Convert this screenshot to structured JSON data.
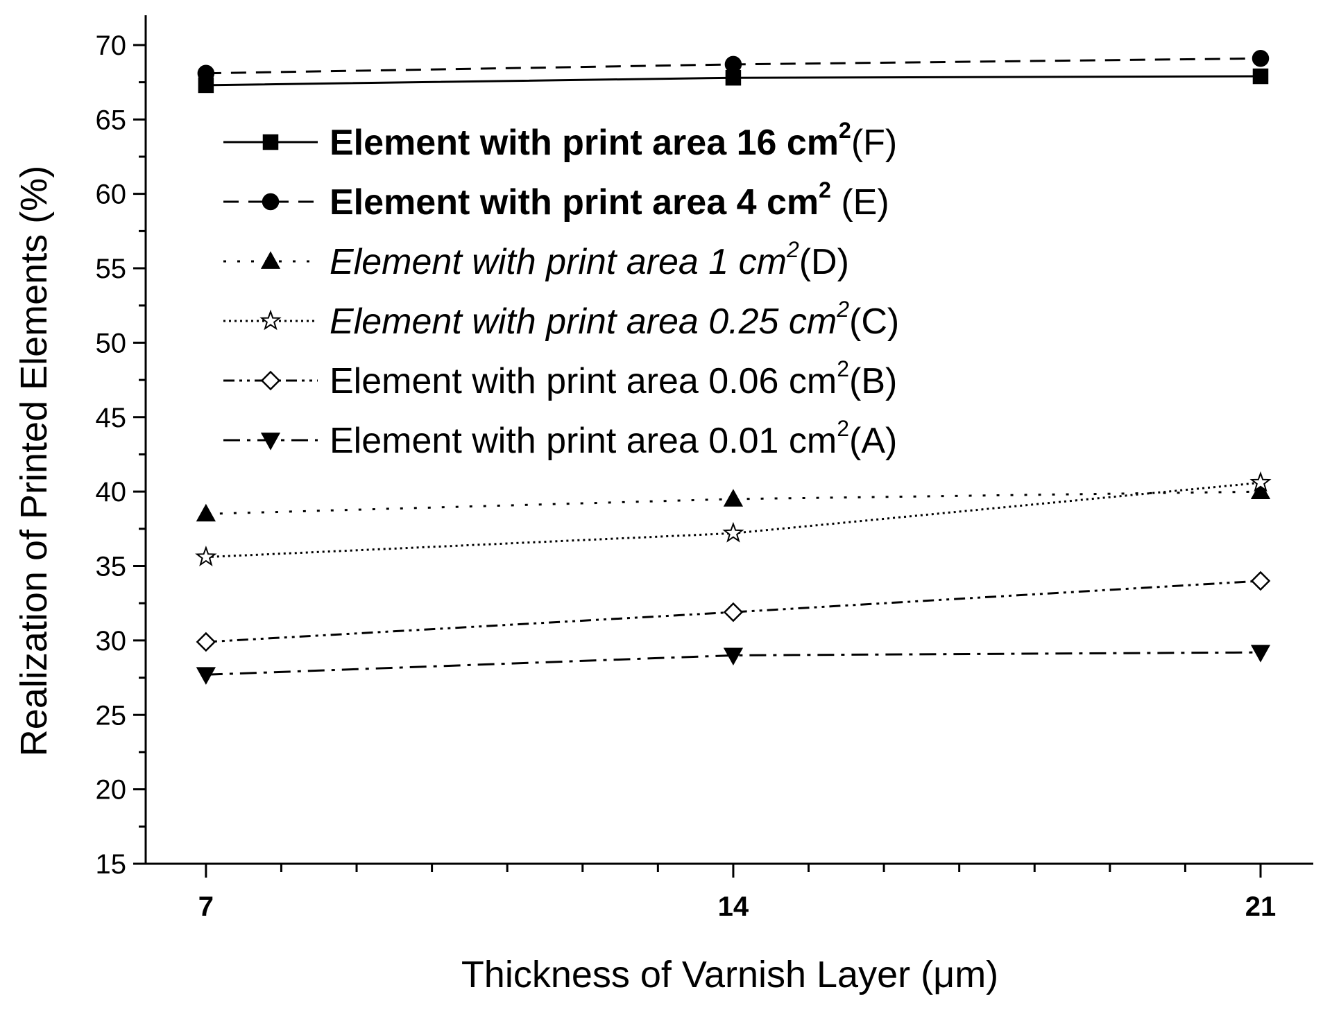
{
  "chart_data": {
    "type": "line",
    "xlabel": "Thickness of Varnish Layer (μm)",
    "ylabel": "Realization of Printed Elements (%)",
    "x": [
      7,
      14,
      21
    ],
    "x_tick_labels": [
      "7",
      "14",
      "21"
    ],
    "xlim": [
      6.2,
      21.7
    ],
    "ylim": [
      15,
      72
    ],
    "y_ticks": [
      15,
      20,
      25,
      30,
      35,
      40,
      45,
      50,
      55,
      60,
      65,
      70
    ],
    "y_tick_labels": [
      "15",
      "20",
      "25",
      "30",
      "35",
      "40",
      "45",
      "50",
      "55",
      "60",
      "65",
      "70"
    ],
    "grid": false,
    "legend_position": "upper-left",
    "series": [
      {
        "key": "F",
        "name_main": "Element with print area 16 cm",
        "name_sup": "2",
        "name_suffix": "(F)",
        "style": "bold",
        "dash": "solid",
        "marker": "square",
        "marker_fill": "filled",
        "values": [
          67.3,
          67.8,
          67.9
        ]
      },
      {
        "key": "E",
        "name_main": "Element with print area 4 cm",
        "name_sup": "2",
        "name_suffix": " (E)",
        "style": "bold",
        "dash": "dash",
        "marker": "circle",
        "marker_fill": "filled",
        "values": [
          68.1,
          68.7,
          69.1
        ]
      },
      {
        "key": "D",
        "name_main": "Element with print area 1 cm",
        "name_sup": "2",
        "name_suffix": "(D)",
        "style": "italic",
        "dash": "dot",
        "marker": "triangle-up",
        "marker_fill": "filled",
        "values": [
          38.5,
          39.5,
          40.0
        ]
      },
      {
        "key": "C",
        "name_main": "Element with print area 0.25 cm",
        "name_sup": "2",
        "name_suffix": "(C)",
        "style": "italic",
        "dash": "short-dot",
        "marker": "star",
        "marker_fill": "open",
        "values": [
          35.6,
          37.2,
          40.6
        ]
      },
      {
        "key": "B",
        "name_main": "Element with print area 0.06 cm",
        "name_sup": "2",
        "name_suffix": "(B)",
        "style": "normal",
        "dash": "dash-dot-dot",
        "marker": "diamond",
        "marker_fill": "open",
        "values": [
          29.9,
          31.9,
          34.0
        ]
      },
      {
        "key": "A",
        "name_main": "Element with print area 0.01 cm",
        "name_sup": "2",
        "name_suffix": "(A)",
        "style": "normal",
        "dash": "dash-dot",
        "marker": "triangle-down",
        "marker_fill": "filled",
        "values": [
          27.7,
          29.0,
          29.2
        ]
      }
    ]
  }
}
